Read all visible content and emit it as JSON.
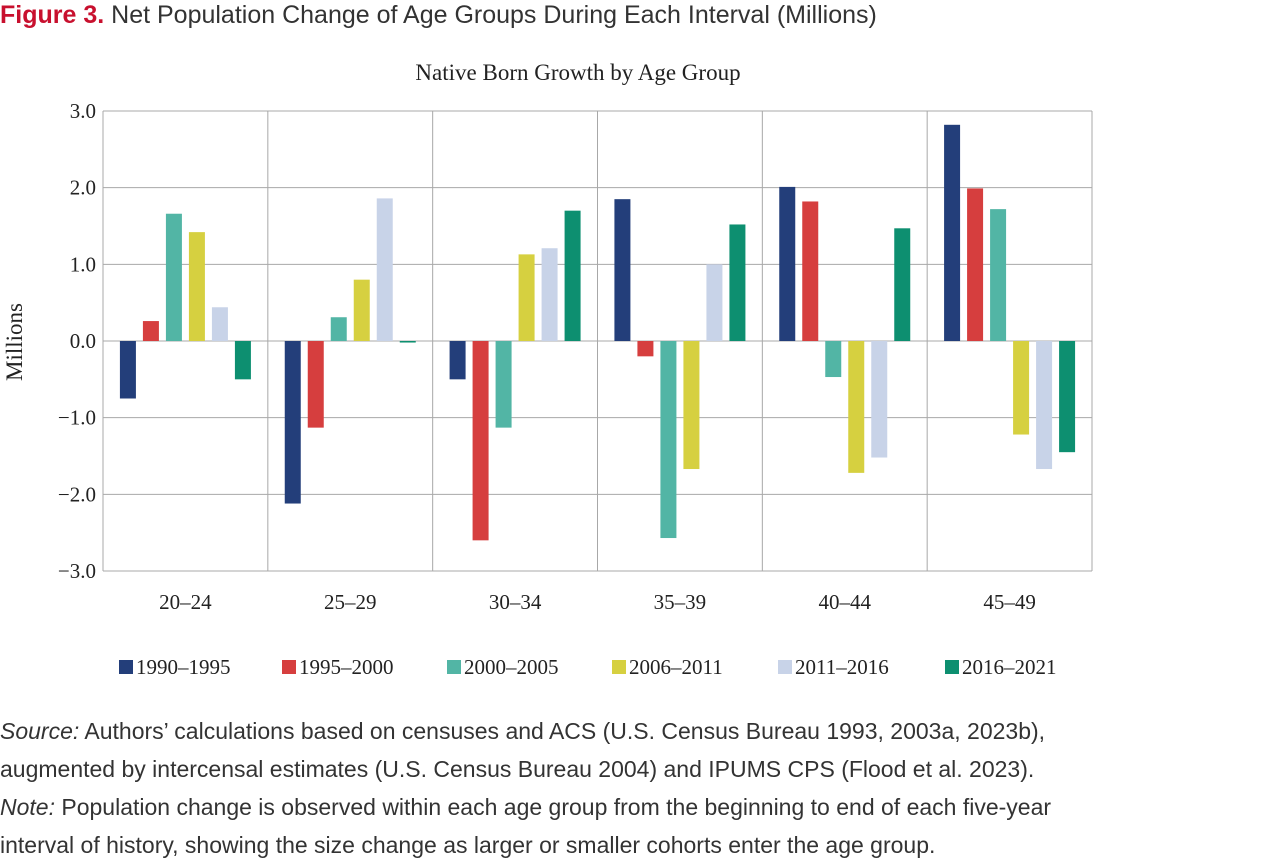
{
  "figure": {
    "label": "Figure 3.",
    "title": "Net Population Change of Age Groups During Each Interval (Millions)"
  },
  "chart_data": {
    "type": "bar",
    "title": "Native Born Growth by Age Group",
    "xlabel": "",
    "ylabel": "Millions",
    "ylim": [
      -3.0,
      3.0
    ],
    "yticks": [
      "3.0",
      "2.0",
      "1.0",
      "0.0",
      "−1.0",
      "−2.0",
      "−3.0"
    ],
    "ytick_values": [
      3,
      2,
      1,
      0,
      -1,
      -2,
      -3
    ],
    "grid": true,
    "legend_position": "bottom",
    "categories": [
      "20–24",
      "25–29",
      "30–34",
      "35–39",
      "40–44",
      "45–49"
    ],
    "series": [
      {
        "name": "1990–1995",
        "color": "#233e7a",
        "values": [
          -0.75,
          -2.12,
          -0.5,
          1.85,
          2.01,
          2.82
        ]
      },
      {
        "name": "1995–2000",
        "color": "#d63e3e",
        "values": [
          0.26,
          -1.13,
          -2.6,
          -0.2,
          1.82,
          1.99
        ]
      },
      {
        "name": "2000–2005",
        "color": "#52b5a5",
        "values": [
          1.66,
          0.31,
          -1.13,
          -2.57,
          -0.47,
          1.72
        ]
      },
      {
        "name": "2006–2011",
        "color": "#d6d040",
        "values": [
          1.42,
          0.8,
          1.13,
          -1.67,
          -1.72,
          -1.22
        ]
      },
      {
        "name": "2011–2016",
        "color": "#c8d3e8",
        "values": [
          0.44,
          1.86,
          1.21,
          1.0,
          -1.52,
          -1.67
        ]
      },
      {
        "name": "2016–2021",
        "color": "#0d8f70",
        "values": [
          -0.5,
          -0.02,
          1.7,
          1.52,
          1.47,
          -1.45
        ]
      }
    ]
  },
  "footer": {
    "source_label": "Source:",
    "source_text": " Authors’ calculations based on censuses and ACS (U.S. Census Bureau 1993, 2003a, 2023b),",
    "source_text2": "augmented by intercensal estimates (U.S. Census Bureau 2004) and IPUMS CPS (Flood et al. 2023).",
    "note_label": "Note:",
    "note_text": " Population change is observed within each age group from the beginning to end of each five-year",
    "note_text2": "interval of history, showing the size change as larger or smaller cohorts enter the age group."
  }
}
